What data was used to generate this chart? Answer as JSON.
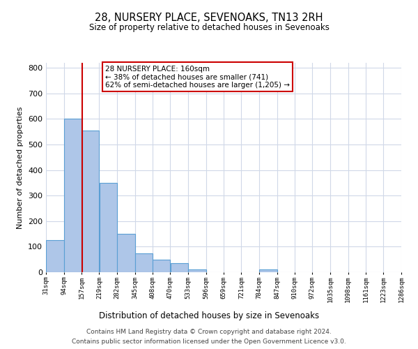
{
  "title": "28, NURSERY PLACE, SEVENOAKS, TN13 2RH",
  "subtitle": "Size of property relative to detached houses in Sevenoaks",
  "xlabel": "Distribution of detached houses by size in Sevenoaks",
  "ylabel": "Number of detached properties",
  "bar_color": "#aec6e8",
  "bar_edge_color": "#5a9fd4",
  "background_color": "#ffffff",
  "grid_color": "#d0d8e8",
  "vline_x": 160,
  "vline_color": "#cc0000",
  "bin_edges": [
    31,
    94,
    157,
    219,
    282,
    345,
    408,
    470,
    533,
    596,
    659,
    721,
    784,
    847,
    910,
    972,
    1035,
    1098,
    1161,
    1223,
    1286
  ],
  "bin_labels": [
    "31sqm",
    "94sqm",
    "157sqm",
    "219sqm",
    "282sqm",
    "345sqm",
    "408sqm",
    "470sqm",
    "533sqm",
    "596sqm",
    "659sqm",
    "721sqm",
    "784sqm",
    "847sqm",
    "910sqm",
    "972sqm",
    "1035sqm",
    "1098sqm",
    "1161sqm",
    "1223sqm",
    "1286sqm"
  ],
  "counts": [
    125,
    600,
    555,
    350,
    150,
    75,
    50,
    35,
    12,
    0,
    0,
    0,
    10,
    0,
    0,
    0,
    0,
    0,
    0,
    0
  ],
  "ylim": [
    0,
    820
  ],
  "annotation_line1": "28 NURSERY PLACE: 160sqm",
  "annotation_line2": "← 38% of detached houses are smaller (741)",
  "annotation_line3": "62% of semi-detached houses are larger (1,205) →",
  "annotation_box_color": "#ffffff",
  "annotation_box_edge": "#cc0000",
  "footnote1": "Contains HM Land Registry data © Crown copyright and database right 2024.",
  "footnote2": "Contains public sector information licensed under the Open Government Licence v3.0."
}
